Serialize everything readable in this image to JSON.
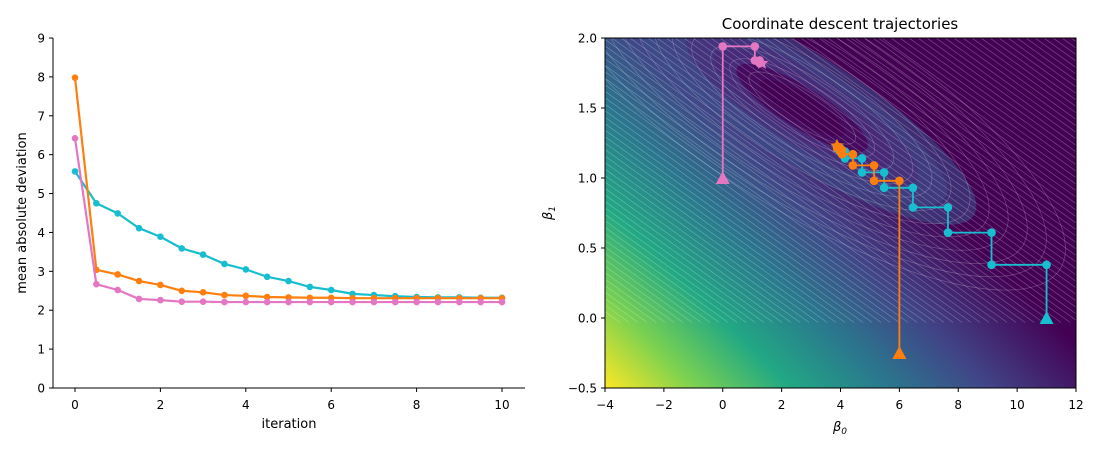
{
  "chart_data": [
    {
      "type": "line",
      "title": "",
      "xlabel": "iteration",
      "ylabel": "mean absolute deviation",
      "xlim": [
        -0.5,
        10.5
      ],
      "ylim": [
        0,
        9
      ],
      "xticks": [
        0,
        2,
        4,
        6,
        8,
        10
      ],
      "yticks": [
        0,
        1,
        2,
        3,
        4,
        5,
        6,
        7,
        8,
        9
      ],
      "grid": false,
      "legend": null,
      "x": [
        0,
        0.5,
        1,
        1.5,
        2,
        2.5,
        3,
        3.5,
        4,
        4.5,
        5,
        5.5,
        6,
        6.5,
        7,
        7.5,
        8,
        8.5,
        9,
        9.5,
        10
      ],
      "series": [
        {
          "name": "cyan start (11, 0)",
          "color": "#17becf",
          "values": [
            5.57,
            4.75,
            4.49,
            4.11,
            3.89,
            3.59,
            3.43,
            3.19,
            3.05,
            2.86,
            2.75,
            2.6,
            2.52,
            2.42,
            2.39,
            2.36,
            2.34,
            2.33,
            2.33,
            2.32,
            2.32
          ]
        },
        {
          "name": "orange start (6, -0.25)",
          "color": "#ff7f0e",
          "values": [
            7.98,
            3.04,
            2.92,
            2.75,
            2.65,
            2.5,
            2.46,
            2.39,
            2.37,
            2.34,
            2.33,
            2.32,
            2.32,
            2.31,
            2.31,
            2.31,
            2.31,
            2.31,
            2.31,
            2.31,
            2.31
          ]
        },
        {
          "name": "pink start (0, 1)",
          "color": "#e377c2",
          "values": [
            6.42,
            2.67,
            2.52,
            2.29,
            2.26,
            2.22,
            2.22,
            2.21,
            2.21,
            2.21,
            2.21,
            2.21,
            2.21,
            2.21,
            2.21,
            2.21,
            2.21,
            2.21,
            2.21,
            2.21,
            2.21
          ]
        }
      ]
    },
    {
      "type": "contour",
      "title": "Coordinate descent trajectories",
      "xlabel": "β0",
      "ylabel": "β1",
      "xlim": [
        -4,
        12
      ],
      "ylim": [
        -0.5,
        2.0
      ],
      "xticks": [
        -4,
        -2,
        0,
        2,
        4,
        6,
        8,
        10,
        12
      ],
      "yticks": [
        -0.5,
        0.0,
        0.5,
        1.0,
        1.5,
        2.0
      ],
      "colormap": "viridis",
      "contour_lines": "white, thin, semi-transparent",
      "minimum_region": {
        "x": 2.7,
        "y": 1.5
      },
      "series": [
        {
          "name": "cyan trajectory",
          "color": "#17becf",
          "start_marker": "triangle",
          "end_marker": "star",
          "points": [
            [
              11.0,
              0.0
            ],
            [
              11.0,
              0.38
            ],
            [
              9.13,
              0.38
            ],
            [
              9.13,
              0.61
            ],
            [
              7.65,
              0.61
            ],
            [
              7.65,
              0.79
            ],
            [
              6.46,
              0.79
            ],
            [
              6.46,
              0.93
            ],
            [
              5.48,
              0.93
            ],
            [
              5.48,
              1.04
            ],
            [
              4.73,
              1.04
            ],
            [
              4.73,
              1.14
            ],
            [
              4.15,
              1.14
            ],
            [
              4.15,
              1.19
            ],
            [
              3.98,
              1.19
            ],
            [
              3.98,
              1.21
            ],
            [
              3.9,
              1.21
            ],
            [
              3.9,
              1.22
            ]
          ]
        },
        {
          "name": "orange trajectory",
          "color": "#ff7f0e",
          "start_marker": "triangle",
          "end_marker": "star",
          "points": [
            [
              6.0,
              -0.25
            ],
            [
              6.0,
              0.98
            ],
            [
              5.14,
              0.98
            ],
            [
              5.14,
              1.09
            ],
            [
              4.42,
              1.09
            ],
            [
              4.42,
              1.17
            ],
            [
              4.05,
              1.17
            ],
            [
              4.05,
              1.2
            ],
            [
              3.95,
              1.2
            ],
            [
              3.95,
              1.22
            ],
            [
              3.88,
              1.22
            ],
            [
              3.88,
              1.23
            ]
          ]
        },
        {
          "name": "pink trajectory",
          "color": "#e377c2",
          "start_marker": "triangle",
          "end_marker": "star",
          "points": [
            [
              0.0,
              1.0
            ],
            [
              0.0,
              1.94
            ],
            [
              1.09,
              1.94
            ],
            [
              1.09,
              1.84
            ],
            [
              1.25,
              1.84
            ],
            [
              1.25,
              1.82
            ],
            [
              1.33,
              1.82
            ]
          ]
        }
      ]
    }
  ]
}
